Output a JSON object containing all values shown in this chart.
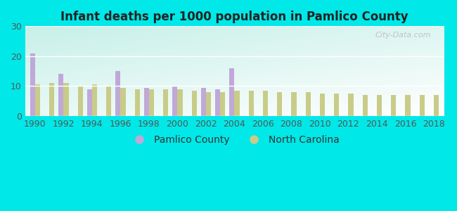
{
  "title": "Infant deaths per 1000 population in Pamlico County",
  "years": [
    1990,
    1991,
    1992,
    1993,
    1994,
    1995,
    1996,
    1997,
    1998,
    1999,
    2000,
    2001,
    2002,
    2003,
    2004,
    2005,
    2006,
    2007,
    2008,
    2009,
    2010,
    2011,
    2012,
    2013,
    2014,
    2015,
    2016,
    2017,
    2018
  ],
  "pamlico": [
    21.0,
    0,
    14.0,
    0,
    9.0,
    0,
    15.0,
    0,
    9.5,
    0,
    10.0,
    0,
    9.5,
    9.0,
    16.0,
    0,
    0,
    0,
    0,
    0,
    0,
    0,
    0,
    0,
    0,
    0,
    0,
    0,
    0
  ],
  "nc": [
    10.5,
    11.0,
    11.0,
    10.0,
    10.5,
    10.0,
    9.5,
    9.0,
    9.0,
    9.0,
    9.0,
    8.5,
    8.0,
    8.0,
    8.5,
    8.5,
    8.5,
    8.0,
    8.0,
    8.0,
    7.5,
    7.5,
    7.5,
    7.0,
    7.0,
    7.0,
    7.0,
    7.0,
    7.0
  ],
  "pamlico_color": "#c0a8d8",
  "nc_color": "#c8cc88",
  "ylim": [
    0,
    30
  ],
  "yticks": [
    0,
    10,
    20,
    30
  ],
  "outer_color": "#00e8e8",
  "bar_width": 0.35,
  "legend_pamlico": "Pamlico County",
  "legend_nc": "North Carolina",
  "watermark": "City-Data.com",
  "title_fontsize": 12,
  "tick_fontsize": 9,
  "legend_fontsize": 10
}
